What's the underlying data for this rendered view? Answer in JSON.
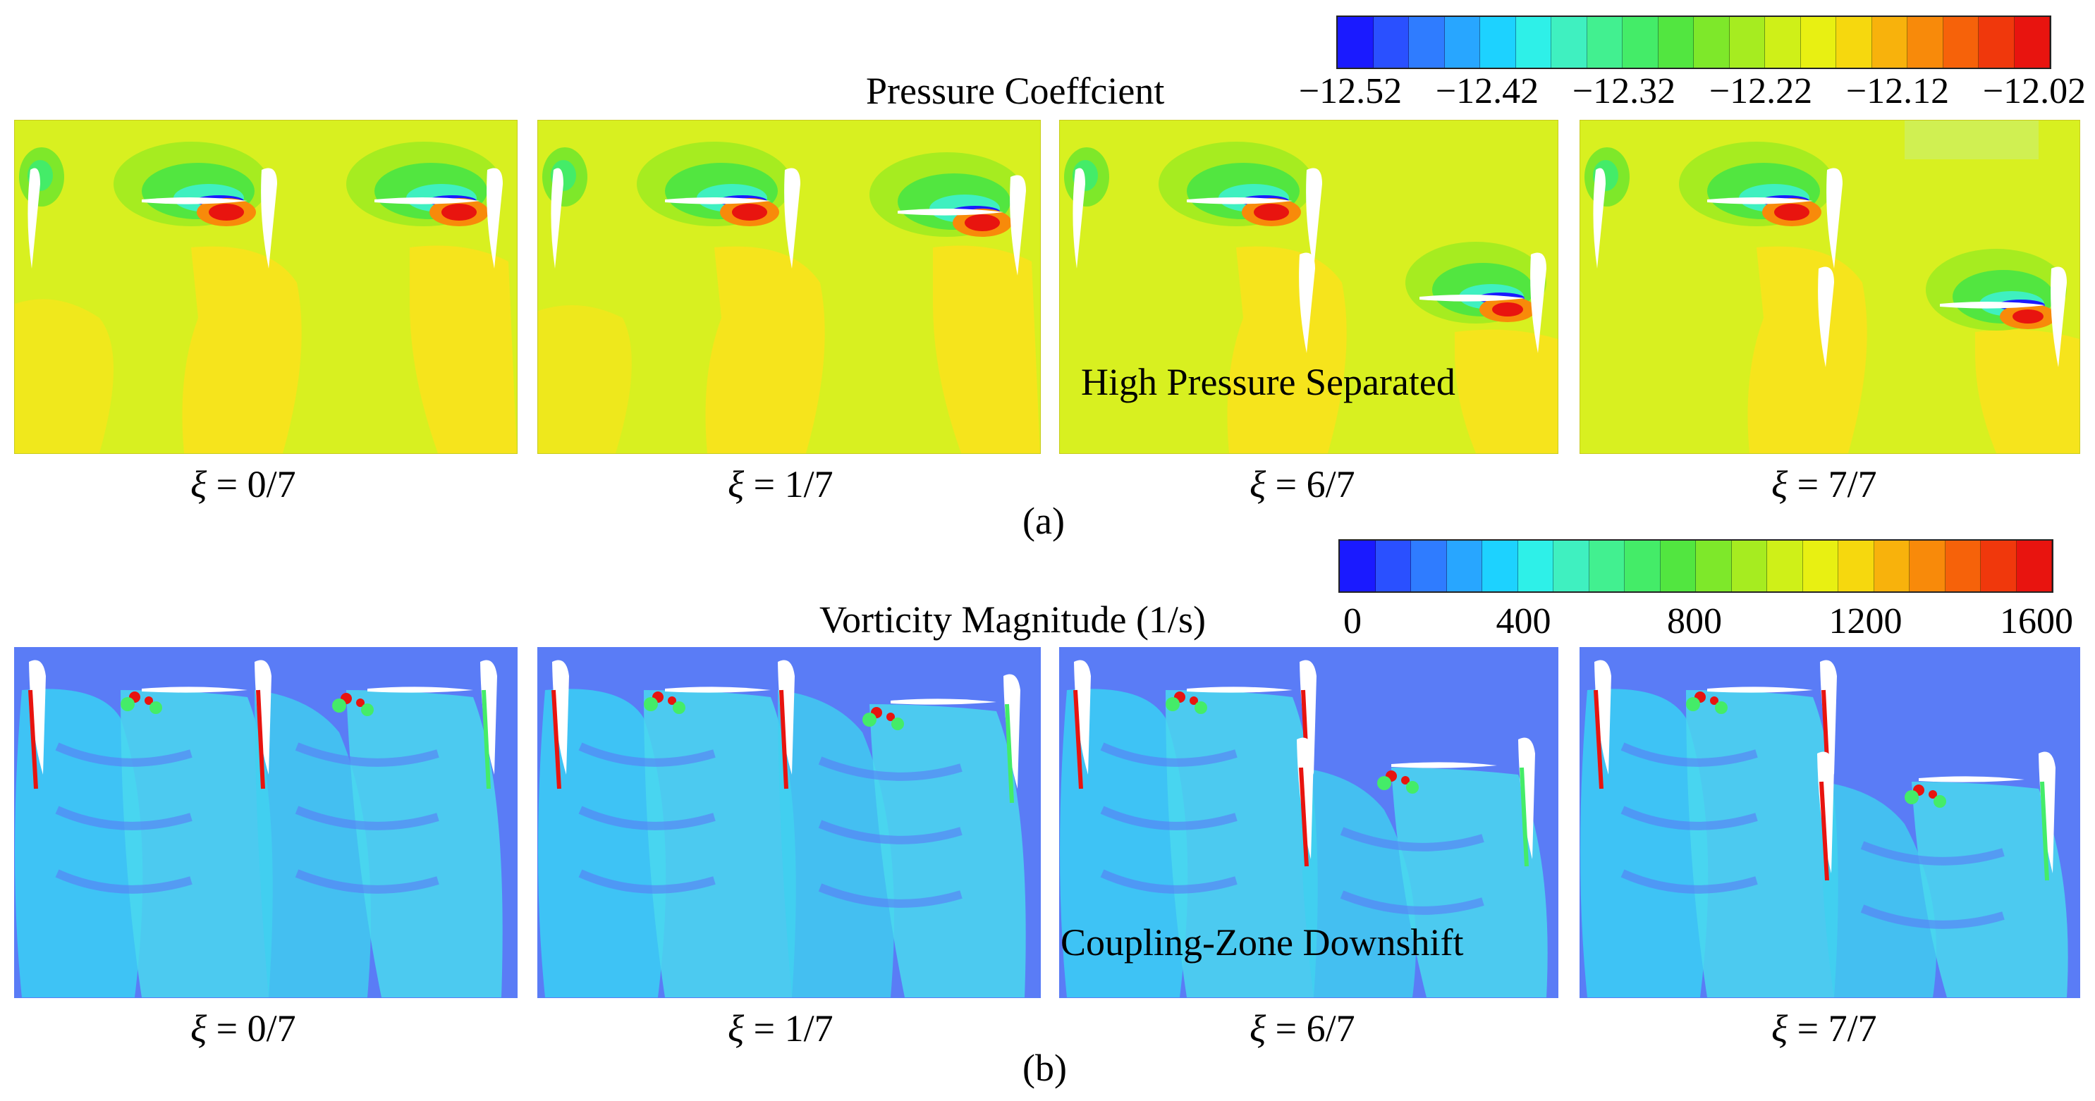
{
  "figure": {
    "panel_a": {
      "caption": "(a)",
      "colorbar": {
        "title": "Pressure Coeffcient",
        "ticks": [
          "−12.52",
          "−12.42",
          "−12.32",
          "−12.22",
          "−12.12",
          "−12.02"
        ],
        "colors": [
          "#1a1aff",
          "#2a50ff",
          "#2f7cff",
          "#28a6ff",
          "#1dd2ff",
          "#2ef0e8",
          "#3ff0c0",
          "#42f090",
          "#44ec68",
          "#52e640",
          "#7ee82a",
          "#a6ec20",
          "#cff018",
          "#e8f012",
          "#f6d80e",
          "#f8b20c",
          "#f88a0a",
          "#f6620a",
          "#f0380c",
          "#e8140f"
        ]
      },
      "overlay_text": "High Pressure Separated",
      "frames": [
        {
          "label_xi": "ξ",
          "label_rest": " = 0/7"
        },
        {
          "label_xi": "ξ",
          "label_rest": " = 1/7"
        },
        {
          "label_xi": "ξ",
          "label_rest": " = 6/7"
        },
        {
          "label_xi": "ξ",
          "label_rest": " = 7/7"
        }
      ]
    },
    "panel_b": {
      "caption": "(b)",
      "colorbar": {
        "title": "Vorticity Magnitude (1/s)",
        "ticks": [
          "0",
          "400",
          "800",
          "1200",
          "1600"
        ],
        "colors": [
          "#1a1aff",
          "#2a50ff",
          "#2f7cff",
          "#28a6ff",
          "#1dd2ff",
          "#2ef0e8",
          "#3ff0c0",
          "#42f090",
          "#44ec68",
          "#52e640",
          "#7ee82a",
          "#a6ec20",
          "#cff018",
          "#e8f012",
          "#f6d80e",
          "#f8b20c",
          "#f88a0a",
          "#f6620a",
          "#f0380c",
          "#e8140f"
        ]
      },
      "overlay_text": "Coupling-Zone Downshift",
      "frames": [
        {
          "label_xi": "ξ",
          "label_rest": " = 0/7"
        },
        {
          "label_xi": "ξ",
          "label_rest": " = 1/7"
        },
        {
          "label_xi": "ξ",
          "label_rest": " = 6/7"
        },
        {
          "label_xi": "ξ",
          "label_rest": " = 7/7"
        }
      ]
    },
    "colors": {
      "pressure_background": "#d8f020",
      "pressure_high": "#f8e81c",
      "vorticity_background": "#5a7cf6",
      "vorticity_wake": "#3fd0f0"
    }
  }
}
